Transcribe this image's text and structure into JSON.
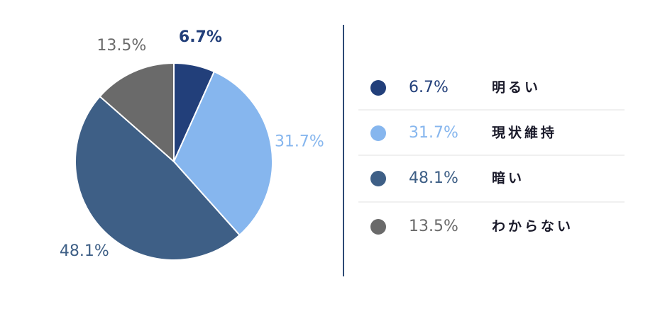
{
  "chart_data": {
    "type": "pie",
    "categories": [
      "明るい",
      "現状維持",
      "暗い",
      "わからない"
    ],
    "values": [
      6.7,
      31.7,
      48.1,
      13.5
    ],
    "value_labels": [
      "6.7%",
      "31.7%",
      "48.1%",
      "13.5%"
    ],
    "colors": [
      "#223f7a",
      "#86b6ee",
      "#3e5f86",
      "#6a6a6a"
    ],
    "legend": "right"
  }
}
